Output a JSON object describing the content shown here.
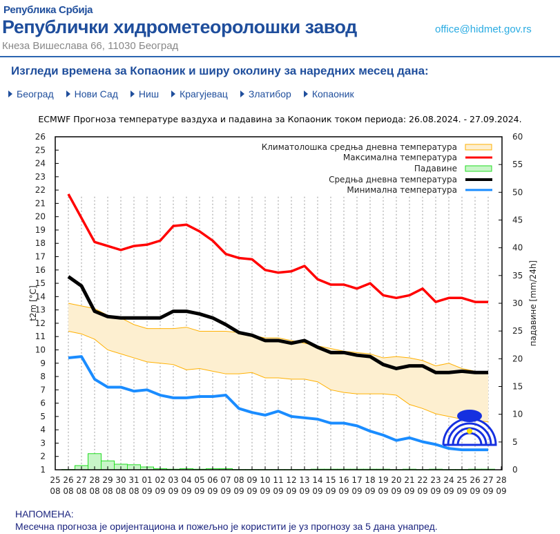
{
  "header": {
    "republic": "Република Србија",
    "institute": "Републички хидрометеоролошки завод",
    "address": "Кнеза Вишеслава 66, 11030  Београд",
    "email": "office@hidmet.gov.rs"
  },
  "heading": "Изгледи времена за Копаоник и ширу околину за наредних месец дана:",
  "nav": [
    {
      "label": "Београд"
    },
    {
      "label": "Нови Сад"
    },
    {
      "label": "Ниш"
    },
    {
      "label": "Крагујевац"
    },
    {
      "label": "Златибор"
    },
    {
      "label": "Копаоник"
    }
  ],
  "note": {
    "title": "НАПОМЕНА:",
    "text": "Месечна прогноза је оријентациона и пожељно је користити је уз прогнозу за 5 дана унапред."
  },
  "chart_data": {
    "type": "line",
    "title": "ECMWF Прогноза температуре ваздуха и падавина за Копаоник током периода: 26.08.2024. - 27.09.2024.",
    "ylabel": "t2m [°C]",
    "y2label": "падавине [mm/24h]",
    "ylim": [
      1,
      26
    ],
    "y2lim": [
      0,
      60
    ],
    "grid": "vertical dotted",
    "legend": "top-right",
    "x_ticks": [
      "25\n08",
      "26\n08",
      "27\n08",
      "28\n08",
      "29\n08",
      "30\n08",
      "31\n08",
      "01\n09",
      "02\n09",
      "03\n09",
      "04\n09",
      "05\n09",
      "06\n09",
      "07\n09",
      "08\n09",
      "09\n09",
      "10\n09",
      "11\n09",
      "12\n09",
      "13\n09",
      "14\n09",
      "15\n09",
      "16\n09",
      "17\n09",
      "18\n09",
      "19\n09",
      "20\n09",
      "21\n09",
      "22\n09",
      "23\n09",
      "24\n09",
      "25\n09",
      "26\n09",
      "27\n09",
      "28\n09"
    ],
    "x": [
      "26.08",
      "27.08",
      "28.08",
      "29.08",
      "30.08",
      "31.08",
      "01.09",
      "02.09",
      "03.09",
      "04.09",
      "05.09",
      "06.09",
      "07.09",
      "08.09",
      "09.09",
      "10.09",
      "11.09",
      "12.09",
      "13.09",
      "14.09",
      "15.09",
      "16.09",
      "17.09",
      "18.09",
      "19.09",
      "20.09",
      "21.09",
      "22.09",
      "23.09",
      "24.09",
      "25.09",
      "26.09",
      "27.09"
    ],
    "series": [
      {
        "name": "Климатолошка средња дневна температура",
        "kind": "band",
        "color": "#ffb000",
        "fill": "#fdefd0",
        "upper": [
          13.5,
          13.3,
          13.1,
          12.6,
          12.4,
          11.9,
          11.6,
          11.6,
          11.6,
          11.7,
          11.4,
          11.4,
          11.4,
          11.3,
          11.1,
          10.9,
          10.9,
          10.7,
          10.5,
          10.3,
          10.1,
          9.9,
          9.8,
          9.7,
          9.4,
          9.5,
          9.4,
          9.2,
          8.8,
          9.0,
          8.6,
          8.4,
          8.3
        ],
        "lower": [
          11.4,
          11.2,
          10.8,
          10.0,
          9.7,
          9.4,
          9.1,
          9.0,
          8.9,
          8.5,
          8.6,
          8.4,
          8.2,
          8.2,
          8.3,
          7.9,
          7.9,
          7.8,
          7.8,
          7.6,
          7.0,
          6.8,
          6.7,
          6.7,
          6.7,
          6.6,
          5.9,
          5.6,
          5.2,
          5.0,
          4.8,
          4.7,
          4.6
        ]
      },
      {
        "name": "Максимална температура",
        "kind": "line",
        "color": "#ff0000",
        "values": [
          21.7,
          19.9,
          18.1,
          17.8,
          17.5,
          17.8,
          17.9,
          18.2,
          19.3,
          19.4,
          18.9,
          18.2,
          17.2,
          16.9,
          16.8,
          16.0,
          15.8,
          15.9,
          16.3,
          15.3,
          14.9,
          14.9,
          14.6,
          15.0,
          14.1,
          13.9,
          14.1,
          14.6,
          13.6,
          13.9,
          13.9,
          13.6,
          13.6
        ]
      },
      {
        "name": "Падавине",
        "kind": "bar",
        "axis": "right",
        "color": "#22dd22",
        "fill": "#c8f5c8",
        "values": [
          0.05,
          0.75,
          2.9,
          1.6,
          1.0,
          0.9,
          0.5,
          0.2,
          0.1,
          0.2,
          0.1,
          0.2,
          0.2,
          0.05,
          0.05,
          0.05,
          0.05,
          0.05,
          0.05,
          0.1,
          0.1,
          0.1,
          0.1,
          0.1,
          0.1,
          0.05,
          0.1,
          0.05,
          0.1,
          0.05,
          0.05,
          0.1,
          0.1
        ]
      },
      {
        "name": "Средња дневна температура",
        "kind": "line",
        "color": "#000000",
        "values": [
          15.5,
          14.8,
          12.9,
          12.5,
          12.4,
          12.4,
          12.4,
          12.4,
          12.9,
          12.9,
          12.7,
          12.4,
          11.9,
          11.3,
          11.1,
          10.7,
          10.7,
          10.5,
          10.7,
          10.2,
          9.8,
          9.8,
          9.6,
          9.5,
          8.9,
          8.6,
          8.8,
          8.8,
          8.3,
          8.3,
          8.4,
          8.3,
          8.3
        ]
      },
      {
        "name": "Минимална температура",
        "kind": "line",
        "color": "#1a8cff",
        "values": [
          9.4,
          9.5,
          7.8,
          7.2,
          7.2,
          6.9,
          7.0,
          6.6,
          6.4,
          6.4,
          6.5,
          6.5,
          6.6,
          5.6,
          5.3,
          5.1,
          5.4,
          5.0,
          4.9,
          4.8,
          4.5,
          4.5,
          4.3,
          3.9,
          3.6,
          3.2,
          3.4,
          3.1,
          2.9,
          2.6,
          2.5,
          2.5,
          2.5
        ]
      }
    ]
  }
}
